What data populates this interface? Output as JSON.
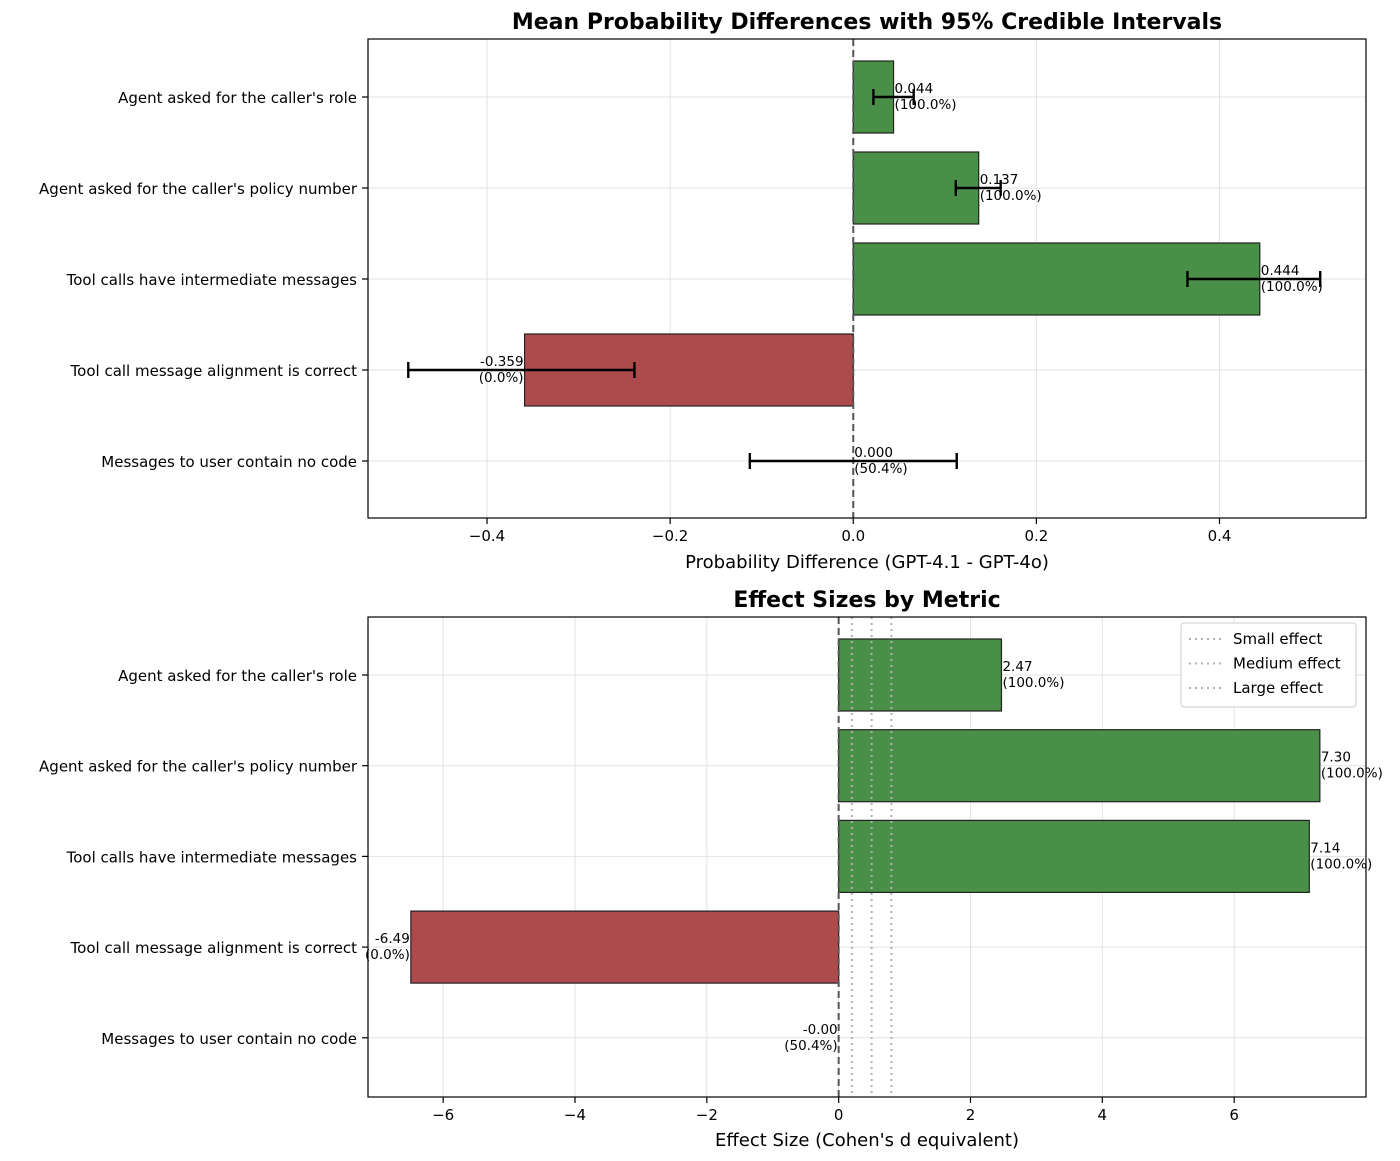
{
  "chart_data": [
    {
      "type": "bar",
      "orientation": "horizontal",
      "title": "Mean Probability Differences with 95% Credible Intervals",
      "xlabel": "Probability Difference (GPT-4.1 - GPT-4o)",
      "ylabel": "",
      "xlim": [
        -0.53,
        0.56
      ],
      "xticks": [
        -0.4,
        -0.2,
        0.0,
        0.2,
        0.4
      ],
      "xtick_labels": [
        "−0.4",
        "−0.2",
        "0.0",
        "0.2",
        "0.4"
      ],
      "grid": true,
      "categories": [
        "Agent asked for the caller's role",
        "Agent asked for the caller's policy number",
        "Tool calls have intermediate messages",
        "Tool call message alignment is correct",
        "Messages to user contain no code"
      ],
      "values": [
        0.044,
        0.137,
        0.444,
        -0.359,
        0.0
      ],
      "ci_lower": [
        0.022,
        0.112,
        0.365,
        -0.486,
        -0.113
      ],
      "ci_upper": [
        0.066,
        0.161,
        0.51,
        -0.239,
        0.113
      ],
      "value_labels": [
        "0.044",
        "0.137",
        "0.444",
        "-0.359",
        "0.000"
      ],
      "prob_labels": [
        "(100.0%)",
        "(100.0%)",
        "(100.0%)",
        "(0.0%)",
        "(50.4%)"
      ],
      "colors": {
        "positive": "#4a8f47",
        "negative": "#ad4a4c",
        "edge": "#222222",
        "zero_line": "#555555",
        "grid": "#e3e3e3"
      }
    },
    {
      "type": "bar",
      "orientation": "horizontal",
      "title": "Effect Sizes by Metric",
      "xlabel": "Effect Size (Cohen's d equivalent)",
      "ylabel": "",
      "xlim": [
        -7.14,
        8.0
      ],
      "xticks": [
        -6,
        -4,
        -2,
        0,
        2,
        4,
        6
      ],
      "xtick_labels": [
        "−6",
        "−4",
        "−2",
        "0",
        "2",
        "4",
        "6"
      ],
      "grid": true,
      "categories": [
        "Agent asked for the caller's role",
        "Agent asked for the caller's policy number",
        "Tool calls have intermediate messages",
        "Tool call message alignment is correct",
        "Messages to user contain no code"
      ],
      "values": [
        2.47,
        7.3,
        7.14,
        -6.49,
        -0.0
      ],
      "value_labels": [
        "2.47",
        "7.30",
        "7.14",
        "-6.49",
        "-0.00"
      ],
      "prob_labels": [
        "(100.0%)",
        "(100.0%)",
        "(100.0%)",
        "(0.0%)",
        "(50.4%)"
      ],
      "reference_lines": [
        {
          "name": "Small effect",
          "value": 0.2
        },
        {
          "name": "Medium effect",
          "value": 0.5
        },
        {
          "name": "Large effect",
          "value": 0.8
        }
      ],
      "legend": {
        "placement": "top-right",
        "entries": [
          "Small effect",
          "Medium effect",
          "Large effect"
        ]
      },
      "colors": {
        "positive": "#4a8f47",
        "negative": "#ad4a4c",
        "edge": "#222222",
        "zero_line": "#555555",
        "grid": "#e3e3e3",
        "reference": "#b0b0b0"
      }
    }
  ]
}
